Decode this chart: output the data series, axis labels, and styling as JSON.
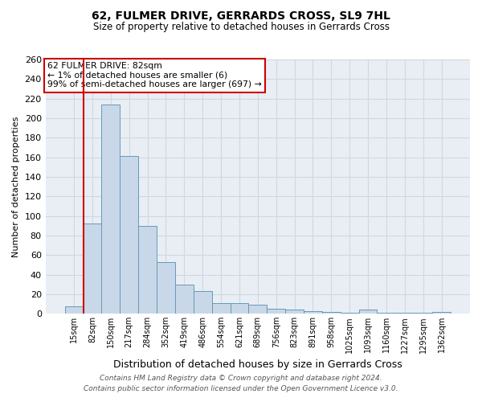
{
  "title": "62, FULMER DRIVE, GERRARDS CROSS, SL9 7HL",
  "subtitle": "Size of property relative to detached houses in Gerrards Cross",
  "xlabel": "Distribution of detached houses by size in Gerrards Cross",
  "ylabel": "Number of detached properties",
  "footer_line1": "Contains HM Land Registry data © Crown copyright and database right 2024.",
  "footer_line2": "Contains public sector information licensed under the Open Government Licence v3.0.",
  "categories": [
    "15sqm",
    "82sqm",
    "150sqm",
    "217sqm",
    "284sqm",
    "352sqm",
    "419sqm",
    "486sqm",
    "554sqm",
    "621sqm",
    "689sqm",
    "756sqm",
    "823sqm",
    "891sqm",
    "958sqm",
    "1025sqm",
    "1093sqm",
    "1160sqm",
    "1227sqm",
    "1295sqm",
    "1362sqm"
  ],
  "values": [
    8,
    92,
    214,
    161,
    90,
    53,
    30,
    23,
    11,
    11,
    9,
    5,
    4,
    3,
    2,
    1,
    4,
    1,
    1,
    1,
    2
  ],
  "bar_color": "#c8d8e8",
  "bar_edge_color": "#6699bb",
  "highlight_index": 1,
  "highlight_line_color": "#cc0000",
  "ylim": [
    0,
    260
  ],
  "yticks": [
    0,
    20,
    40,
    60,
    80,
    100,
    120,
    140,
    160,
    180,
    200,
    220,
    240,
    260
  ],
  "annotation_line1": "62 FULMER DRIVE: 82sqm",
  "annotation_line2": "← 1% of detached houses are smaller (6)",
  "annotation_line3": "99% of semi-detached houses are larger (697) →",
  "annotation_box_color": "#ffffff",
  "annotation_box_edge_color": "#cc0000",
  "background_color": "#ffffff",
  "grid_color": "#d0d8e0"
}
